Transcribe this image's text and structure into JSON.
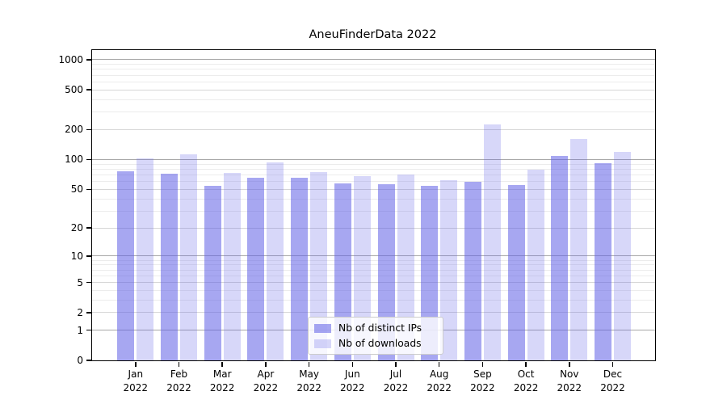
{
  "chart_data": {
    "type": "bar",
    "title": "AneuFinderData 2022",
    "categories": [
      "Jan",
      "Feb",
      "Mar",
      "Apr",
      "May",
      "Jun",
      "Jul",
      "Aug",
      "Sep",
      "Oct",
      "Nov",
      "Dec"
    ],
    "year_label": "2022",
    "series": [
      {
        "name": "Nb of distinct IPs",
        "hex": "#a9a9f3",
        "fill": "rgba(95,95,230,0.55)",
        "values": [
          76,
          72,
          54,
          65,
          66,
          57,
          56,
          54,
          60,
          55,
          108,
          92
        ]
      },
      {
        "name": "Nb of downloads",
        "hex": "#dcdcf9",
        "fill": "rgba(95,95,230,0.25)",
        "values": [
          103,
          112,
          73,
          93,
          75,
          68,
          71,
          62,
          225,
          79,
          160,
          120
        ]
      }
    ],
    "yscale": "log1p",
    "yticks": [
      0,
      1,
      2,
      5,
      10,
      20,
      50,
      100,
      200,
      500,
      1000
    ],
    "yticks_minor": [
      3,
      4,
      6,
      7,
      8,
      9,
      30,
      40,
      60,
      70,
      80,
      90,
      300,
      400,
      600,
      700,
      800,
      900
    ],
    "ylim": [
      0,
      1200
    ],
    "grid": true,
    "legend_position": "lower center"
  },
  "colors": {
    "background": "#ffffff",
    "spine": "#000000",
    "grid_decade": "#a8a8a8",
    "grid_major": "#d6d6d6",
    "grid_minor": "#ececec",
    "text": "#000000",
    "legend_border": "#cccccc",
    "legend_bg": "rgba(255,255,255,0.8)"
  }
}
